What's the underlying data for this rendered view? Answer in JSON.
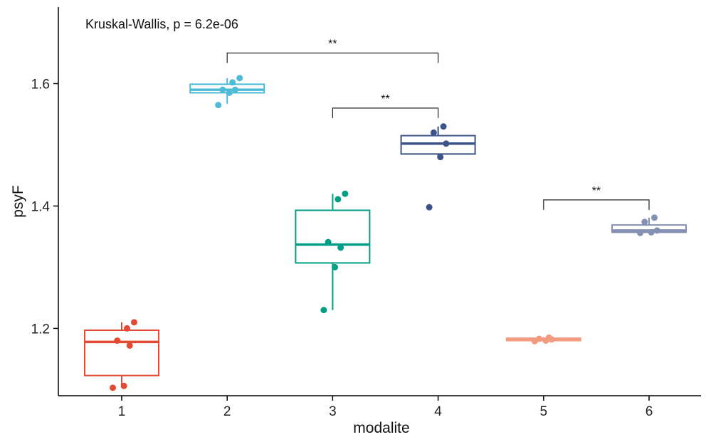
{
  "chart_data": {
    "type": "box",
    "xlabel": "modalite",
    "ylabel": "psyF",
    "categories": [
      "1",
      "2",
      "3",
      "4",
      "5",
      "6"
    ],
    "ylim": [
      1.09,
      1.725
    ],
    "yticks": [
      "1.2",
      "1.4",
      "1.6"
    ],
    "annotation": "Kruskal-Wallis, p = 6.2e-06",
    "grid": false,
    "legend": "none",
    "groups": [
      {
        "category": "1",
        "color": "#e34a33",
        "min": 1.105,
        "q1": 1.123,
        "median": 1.178,
        "q3": 1.197,
        "max": 1.21,
        "points": [
          1.103,
          1.106,
          1.172,
          1.18,
          1.2,
          1.21
        ]
      },
      {
        "category": "2",
        "color": "#4dbbd5",
        "min": 1.567,
        "q1": 1.585,
        "median": 1.59,
        "q3": 1.599,
        "max": 1.609,
        "points": [
          1.565,
          1.585,
          1.59,
          1.59,
          1.602,
          1.609
        ]
      },
      {
        "category": "3",
        "color": "#009e85",
        "min": 1.23,
        "q1": 1.307,
        "median": 1.337,
        "q3": 1.393,
        "max": 1.42,
        "points": [
          1.23,
          1.3,
          1.332,
          1.341,
          1.411,
          1.42
        ]
      },
      {
        "category": "4",
        "color": "#3c5488",
        "min": 1.48,
        "q1": 1.485,
        "median": 1.502,
        "q3": 1.515,
        "max": 1.53,
        "points": [
          1.398,
          1.48,
          1.502,
          1.52,
          1.53
        ]
      },
      {
        "category": "5",
        "color": "#f39b7f",
        "min": 1.179,
        "q1": 1.18,
        "median": 1.182,
        "q3": 1.184,
        "max": 1.186,
        "points": [
          1.179,
          1.18,
          1.182,
          1.183,
          1.185
        ]
      },
      {
        "category": "6",
        "color": "#8491b4",
        "min": 1.356,
        "q1": 1.357,
        "median": 1.36,
        "q3": 1.369,
        "max": 1.381,
        "points": [
          1.356,
          1.357,
          1.36,
          1.374,
          1.381
        ]
      }
    ],
    "comparisons": [
      {
        "from": "2",
        "to": "4",
        "y": 1.65,
        "label": "**"
      },
      {
        "from": "3",
        "to": "4",
        "y": 1.56,
        "label": "**"
      },
      {
        "from": "5",
        "to": "6",
        "y": 1.41,
        "label": "**"
      }
    ]
  }
}
